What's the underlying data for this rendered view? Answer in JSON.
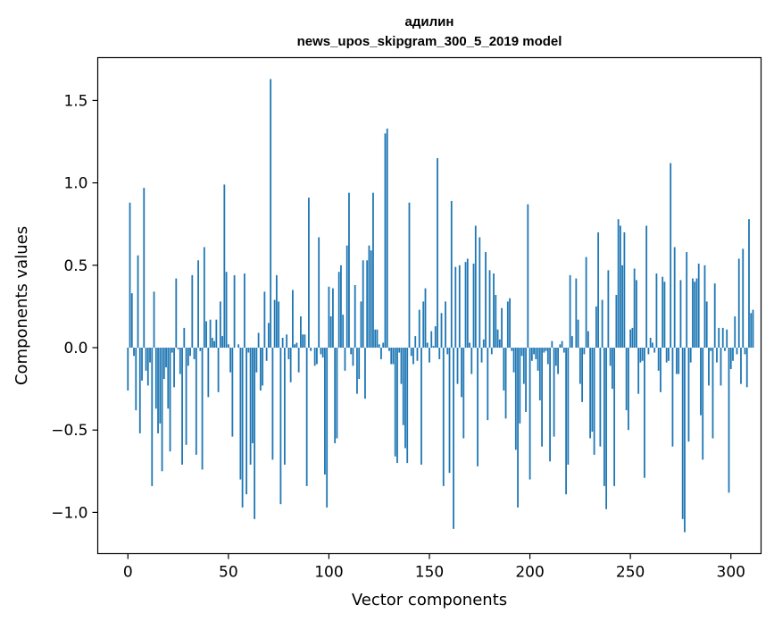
{
  "chart_data": {
    "type": "bar",
    "title": "адилин",
    "subtitle": "news_upos_skipgram_300_5_2019 model",
    "xlabel": "Vector components",
    "ylabel": "Components values",
    "xlim": [
      -15,
      315
    ],
    "ylim": [
      -1.25,
      1.76
    ],
    "xticks": [
      0,
      50,
      100,
      150,
      200,
      250,
      300
    ],
    "yticks": [
      -1.0,
      -0.5,
      0.0,
      0.5,
      1.0,
      1.5
    ],
    "ytick_labels": [
      "−1.0",
      "−0.5",
      "0.0",
      "0.5",
      "1.0",
      "1.5"
    ],
    "bar_color": "#1f77b4",
    "grid": false,
    "values": [
      -0.26,
      0.88,
      0.33,
      -0.05,
      -0.38,
      0.56,
      -0.52,
      -0.2,
      0.97,
      -0.14,
      -0.23,
      -0.09,
      -0.84,
      0.34,
      -0.37,
      -0.52,
      -0.46,
      -0.75,
      -0.19,
      -0.12,
      -0.37,
      -0.63,
      -0.03,
      -0.24,
      0.42,
      -0.01,
      -0.16,
      -0.71,
      0.12,
      -0.59,
      -0.11,
      -0.05,
      0.44,
      -0.07,
      -0.65,
      0.53,
      -0.02,
      -0.74,
      0.61,
      0.16,
      -0.3,
      0.17,
      0.06,
      0.04,
      0.17,
      -0.27,
      0.28,
      0.07,
      0.99,
      0.46,
      0.02,
      -0.15,
      -0.54,
      0.44,
      0.0,
      0.02,
      -0.8,
      -0.97,
      0.45,
      -0.89,
      -0.03,
      -0.71,
      -0.58,
      -1.04,
      -0.15,
      0.09,
      -0.26,
      -0.23,
      0.34,
      -0.08,
      0.15,
      1.63,
      -0.68,
      0.29,
      0.44,
      0.28,
      -0.95,
      0.06,
      -0.71,
      0.08,
      -0.07,
      -0.21,
      0.35,
      0.02,
      0.03,
      -0.15,
      0.19,
      0.08,
      0.08,
      -0.84,
      0.91,
      -0.02,
      0.0,
      -0.11,
      -0.1,
      0.67,
      -0.04,
      -0.06,
      -0.77,
      -0.97,
      0.37,
      0.19,
      0.36,
      -0.58,
      -0.55,
      0.46,
      0.5,
      0.2,
      -0.14,
      0.62,
      0.94,
      -0.04,
      -0.11,
      0.38,
      -0.28,
      -0.19,
      0.28,
      0.53,
      -0.31,
      0.53,
      0.62,
      0.59,
      0.94,
      0.11,
      0.11,
      0.02,
      -0.07,
      0.03,
      1.3,
      1.33,
      -0.02,
      -0.1,
      -0.1,
      -0.66,
      -0.7,
      -0.03,
      -0.22,
      -0.47,
      -0.61,
      -0.7,
      0.88,
      -0.05,
      -0.1,
      0.07,
      -0.08,
      0.23,
      -0.71,
      0.28,
      0.36,
      0.03,
      -0.09,
      0.1,
      0.01,
      0.13,
      1.15,
      -0.07,
      0.21,
      -0.84,
      0.28,
      -0.04,
      -0.76,
      0.89,
      -1.1,
      0.49,
      -0.22,
      0.5,
      -0.3,
      -0.55,
      0.52,
      0.54,
      0.03,
      -0.16,
      0.51,
      0.74,
      -0.72,
      0.67,
      -0.09,
      0.05,
      0.58,
      -0.44,
      0.47,
      -0.04,
      0.45,
      0.32,
      0.11,
      0.05,
      0.24,
      -0.26,
      -0.43,
      0.28,
      0.3,
      -0.02,
      -0.15,
      -0.62,
      -0.97,
      -0.46,
      -0.05,
      -0.22,
      -0.39,
      0.87,
      -0.8,
      -0.08,
      -0.04,
      -0.07,
      -0.14,
      -0.32,
      -0.6,
      -0.03,
      -0.02,
      -0.1,
      -0.69,
      0.04,
      -0.54,
      -0.11,
      -0.16,
      0.02,
      0.04,
      -0.03,
      -0.89,
      -0.71,
      0.44,
      0.07,
      0.0,
      0.42,
      0.17,
      -0.22,
      -0.33,
      -0.04,
      0.55,
      0.1,
      -0.55,
      -0.51,
      -0.65,
      0.25,
      0.7,
      -0.6,
      0.29,
      -0.84,
      -0.98,
      0.47,
      -0.11,
      -0.25,
      -0.84,
      0.32,
      0.78,
      0.74,
      0.5,
      0.7,
      -0.38,
      -0.5,
      0.11,
      0.12,
      0.48,
      0.41,
      -0.28,
      -0.09,
      -0.08,
      -0.79,
      0.74,
      -0.04,
      0.06,
      0.03,
      -0.03,
      0.45,
      -0.14,
      -0.27,
      0.43,
      0.4,
      -0.09,
      -0.08,
      1.12,
      -0.6,
      0.61,
      -0.16,
      -0.16,
      0.41,
      -1.04,
      -1.12,
      0.58,
      -0.57,
      -0.09,
      0.42,
      0.4,
      0.42,
      0.51,
      -0.41,
      -0.68,
      0.5,
      0.28,
      -0.23,
      -0.02,
      -0.55,
      0.39,
      -0.09,
      0.12,
      -0.23,
      0.12,
      -0.02,
      0.11,
      -0.88,
      -0.13,
      -0.08,
      0.19,
      -0.04,
      0.54,
      -0.22,
      0.6,
      -0.04,
      -0.24,
      0.78,
      0.21,
      0.23
    ]
  }
}
